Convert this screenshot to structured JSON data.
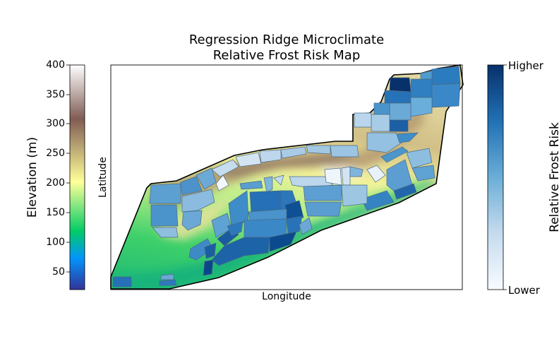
{
  "title": [
    "Regression Ridge Microclimate",
    "Relative Frost Risk Map"
  ],
  "map": {
    "xlabel": "Longitude",
    "ylabel": "Latitude"
  },
  "elevation_colorbar": {
    "label": "Elevation (m)",
    "range": [
      20,
      400
    ],
    "ticks": [
      50,
      100,
      150,
      200,
      250,
      300,
      350,
      400
    ],
    "colormap": "terrain",
    "colors": [
      "#333399",
      "#0295fc",
      "#02cc66",
      "#ffff99",
      "#805c54",
      "#ffffff"
    ]
  },
  "risk_colorbar": {
    "label": "Relative Frost Risk",
    "high_label": "Higher",
    "low_label": "Lower",
    "colormap": "Blues",
    "colors": [
      "#f7fbff",
      "#c6dbef",
      "#6baed6",
      "#2171b5",
      "#08306b"
    ]
  }
}
